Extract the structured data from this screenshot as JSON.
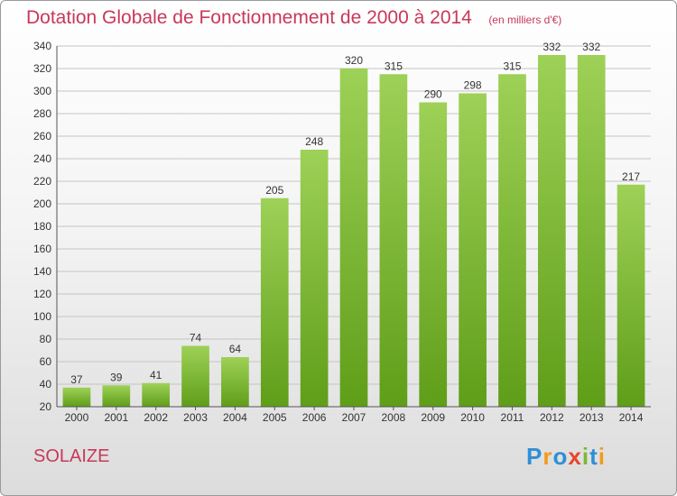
{
  "header": {
    "title": "Dotation Globale de Fonctionnement de 2000 à 2014",
    "subtitle": "(en milliers d'€)"
  },
  "footer": {
    "city": "SOLAIZE",
    "logo": {
      "text": "Proxiti",
      "letters": [
        "P",
        "r",
        "o",
        "x",
        "i",
        "t",
        "i"
      ],
      "colors": [
        "#2e8fd6",
        "#f39a1e",
        "#2e8fd6",
        "#e8452c",
        "#7cb82f",
        "#2e8fd6",
        "#f39a1e"
      ]
    }
  },
  "colors": {
    "bar_light": "#9ed157",
    "bar_dark": "#5f9e19",
    "grid": "#c4c4c4",
    "axis": "#555555",
    "title": "#c8385a"
  },
  "chart_data": {
    "type": "bar",
    "categories": [
      "2000",
      "2001",
      "2002",
      "2003",
      "2004",
      "2005",
      "2006",
      "2007",
      "2008",
      "2009",
      "2010",
      "2011",
      "2012",
      "2013",
      "2014"
    ],
    "values": [
      37,
      39,
      41,
      74,
      64,
      205,
      248,
      320,
      315,
      290,
      298,
      315,
      332,
      332,
      217
    ],
    "title": "Dotation Globale de Fonctionnement de 2000 à 2014",
    "subtitle": "(en milliers d'€)",
    "xlabel": "",
    "ylabel": "",
    "ylim": [
      20,
      340
    ],
    "yticks": [
      20,
      40,
      60,
      80,
      100,
      120,
      140,
      160,
      180,
      200,
      220,
      240,
      260,
      280,
      300,
      320,
      340
    ],
    "grid": true,
    "legend": "none"
  }
}
